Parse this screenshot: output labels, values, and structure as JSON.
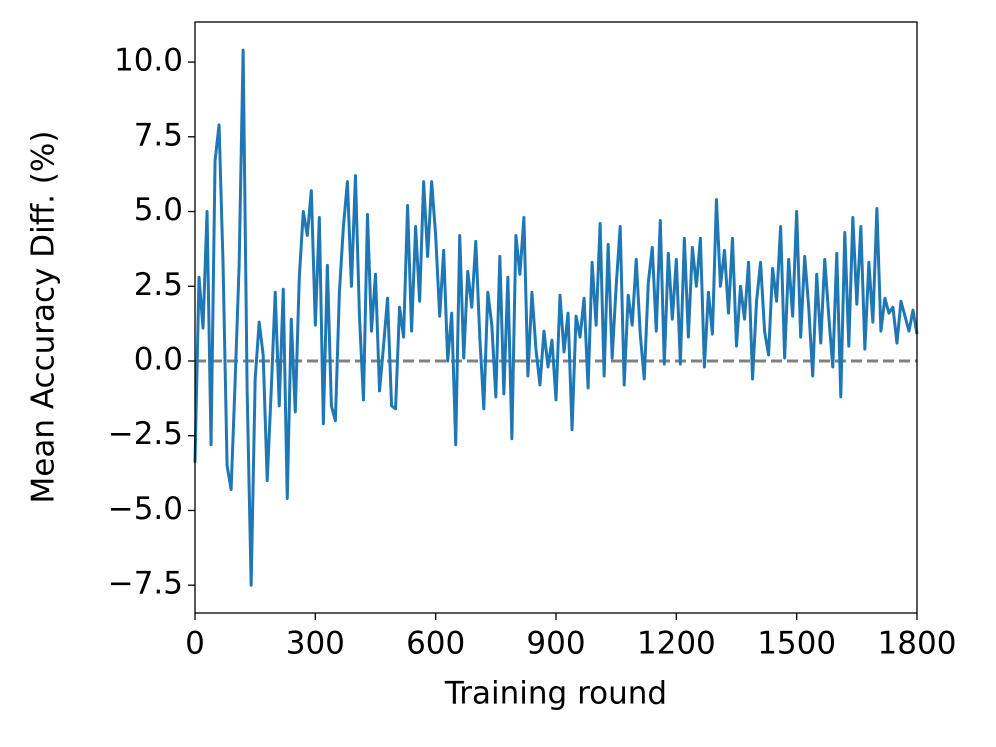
{
  "chart_data": {
    "type": "line",
    "xlabel": "Training round",
    "ylabel": "Mean Accuracy Diff. (%)",
    "x": [
      0,
      10,
      20,
      30,
      40,
      50,
      60,
      70,
      80,
      90,
      100,
      110,
      120,
      130,
      140,
      150,
      160,
      170,
      180,
      190,
      200,
      210,
      220,
      230,
      240,
      250,
      260,
      270,
      280,
      290,
      300,
      310,
      320,
      330,
      340,
      350,
      360,
      370,
      380,
      390,
      400,
      410,
      420,
      430,
      440,
      450,
      460,
      470,
      480,
      490,
      500,
      510,
      520,
      530,
      540,
      550,
      560,
      570,
      580,
      590,
      600,
      610,
      620,
      630,
      640,
      650,
      660,
      670,
      680,
      690,
      700,
      710,
      720,
      730,
      740,
      750,
      760,
      770,
      780,
      790,
      800,
      810,
      820,
      830,
      840,
      850,
      860,
      870,
      880,
      890,
      900,
      910,
      920,
      930,
      940,
      950,
      960,
      970,
      980,
      990,
      1000,
      1010,
      1020,
      1030,
      1040,
      1050,
      1060,
      1070,
      1080,
      1090,
      1100,
      1110,
      1120,
      1130,
      1140,
      1150,
      1160,
      1170,
      1180,
      1190,
      1200,
      1210,
      1220,
      1230,
      1240,
      1250,
      1260,
      1270,
      1280,
      1290,
      1300,
      1310,
      1320,
      1330,
      1340,
      1350,
      1360,
      1370,
      1380,
      1390,
      1400,
      1410,
      1420,
      1430,
      1440,
      1450,
      1460,
      1470,
      1480,
      1490,
      1500,
      1510,
      1520,
      1530,
      1540,
      1550,
      1560,
      1570,
      1580,
      1590,
      1600,
      1610,
      1620,
      1630,
      1640,
      1650,
      1660,
      1670,
      1680,
      1690,
      1700,
      1710,
      1720,
      1730,
      1740,
      1750,
      1760,
      1770,
      1780,
      1790,
      1800
    ],
    "series": [
      {
        "color": "#1f77b4",
        "values": [
          -3.4,
          2.8,
          1.1,
          5.0,
          -2.8,
          6.7,
          7.9,
          3.2,
          -3.5,
          -4.3,
          -0.7,
          3.2,
          10.4,
          -1.0,
          -7.5,
          -0.6,
          1.3,
          0.2,
          -4.0,
          -1.0,
          2.3,
          -1.5,
          2.4,
          -4.6,
          1.4,
          -1.7,
          2.8,
          5.0,
          4.2,
          5.7,
          1.2,
          4.8,
          -2.1,
          3.2,
          -1.5,
          -2.0,
          2.3,
          4.5,
          6.0,
          2.5,
          6.2,
          1.5,
          -1.3,
          4.9,
          1.0,
          2.9,
          -1.0,
          0.5,
          2.1,
          -1.5,
          -1.6,
          1.8,
          0.8,
          5.2,
          1.0,
          4.5,
          2.0,
          6.0,
          3.5,
          6.0,
          4.2,
          1.5,
          3.7,
          0.0,
          1.6,
          -2.8,
          4.2,
          0.1,
          3.0,
          1.8,
          4.0,
          0.8,
          -1.6,
          2.3,
          1.2,
          -1.2,
          3.5,
          -1.1,
          2.8,
          -2.6,
          4.2,
          2.9,
          4.8,
          -0.5,
          2.3,
          0.4,
          -0.8,
          1.0,
          -0.2,
          0.7,
          -1.3,
          2.2,
          0.3,
          1.6,
          -2.3,
          1.5,
          0.8,
          2.1,
          -0.9,
          3.3,
          1.2,
          4.6,
          -0.5,
          3.9,
          0.1,
          2.5,
          4.5,
          -0.8,
          2.2,
          1.2,
          3.4,
          0.9,
          -0.6,
          2.6,
          3.8,
          1.0,
          4.7,
          -0.1,
          3.6,
          1.4,
          3.4,
          -0.1,
          4.1,
          0.8,
          3.8,
          2.5,
          4.1,
          -0.2,
          2.3,
          0.9,
          5.4,
          2.5,
          3.7,
          1.6,
          4.1,
          0.5,
          2.5,
          1.4,
          3.3,
          -0.6,
          2.0,
          3.3,
          1.0,
          0.2,
          3.1,
          2.0,
          4.5,
          0.1,
          3.4,
          1.5,
          5.0,
          0.8,
          3.5,
          1.8,
          -0.5,
          2.9,
          0.6,
          3.4,
          1.5,
          -0.2,
          3.6,
          -1.2,
          4.3,
          0.5,
          4.8,
          1.9,
          4.5,
          0.4,
          3.3,
          1.3,
          5.1,
          1.0,
          2.1,
          1.6,
          1.8,
          0.6,
          2.0,
          1.5,
          1.0,
          1.7,
          0.9
        ]
      }
    ],
    "xlim": [
      0,
      1800
    ],
    "ylim": [
      -8.43,
      11.34
    ],
    "xticks": [
      0,
      300,
      600,
      900,
      1200,
      1500,
      1800
    ],
    "yticks": [
      {
        "value": -7.5,
        "label": "−7.5"
      },
      {
        "value": -5,
        "label": "−5.0"
      },
      {
        "value": -2.5,
        "label": "−2.5"
      },
      {
        "value": 0,
        "label": "0.0"
      },
      {
        "value": 2.5,
        "label": "2.5"
      },
      {
        "value": 5,
        "label": "5.0"
      },
      {
        "value": 7.5,
        "label": "7.5"
      },
      {
        "value": 10,
        "label": "10.0"
      }
    ],
    "reference_line": {
      "y": 0,
      "color": "#808080",
      "style": "dashed"
    }
  }
}
